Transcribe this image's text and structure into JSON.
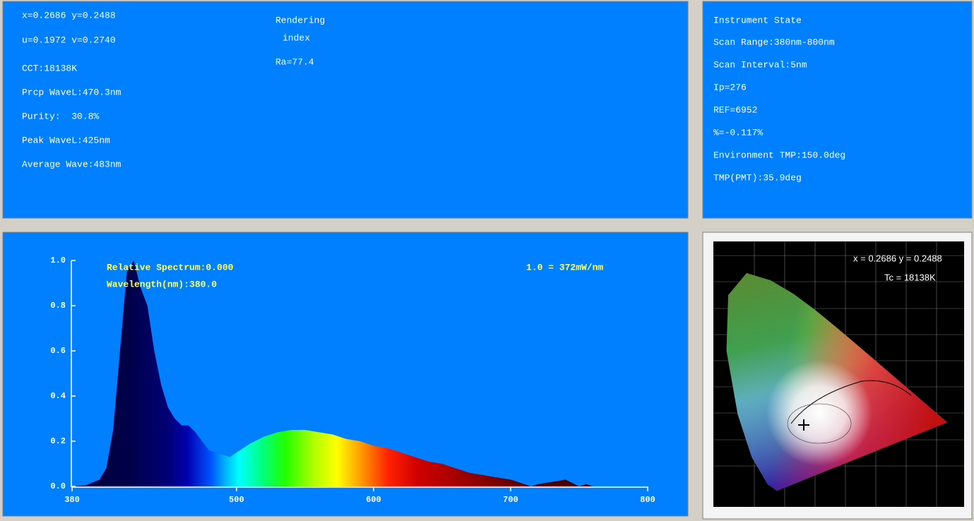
{
  "color_params": {
    "xy": "x=0.2686 y=0.2488",
    "uv": "u=0.1972 v=0.2740",
    "cct": "CCT:18138K",
    "prcp_wavel": "Prcp WaveL:470.3nm",
    "purity": "Purity:  30.8%",
    "peak_wavel": "Peak WaveL:425nm",
    "average_wave": "Average Wave:483nm"
  },
  "rendering": {
    "title": "Rendering",
    "subtitle": "index",
    "ra": "Ra=77.4"
  },
  "instrument": {
    "title": "Instrument State",
    "lines": [
      "Scan Range:380nm-800nm",
      "Scan Interval:5nm",
      "Ip=276",
      "REF=6952",
      "%=-0.117%",
      "Environment TMP:150.0deg",
      "TMP(PMT):35.9deg"
    ]
  },
  "spectrum": {
    "type": "area",
    "readout": [
      "Relative Spectrum:0.000",
      "Wavelength(nm):380.0"
    ],
    "scale_note": "1.0 = 372mW/nm",
    "x": [
      380,
      390,
      400,
      405,
      410,
      415,
      420,
      425,
      430,
      435,
      440,
      445,
      450,
      455,
      460,
      465,
      470,
      475,
      480,
      490,
      495,
      500,
      510,
      520,
      530,
      540,
      550,
      560,
      570,
      580,
      590,
      600,
      610,
      620,
      630,
      640,
      650,
      660,
      670,
      680,
      690,
      700,
      710,
      715,
      720,
      730,
      740,
      750,
      755,
      760
    ],
    "values": [
      0,
      0.005,
      0.03,
      0.08,
      0.25,
      0.6,
      0.95,
      1.0,
      0.88,
      0.8,
      0.6,
      0.45,
      0.35,
      0.3,
      0.27,
      0.27,
      0.24,
      0.2,
      0.16,
      0.14,
      0.13,
      0.15,
      0.19,
      0.22,
      0.24,
      0.25,
      0.25,
      0.24,
      0.23,
      0.21,
      0.2,
      0.18,
      0.17,
      0.15,
      0.13,
      0.11,
      0.1,
      0.08,
      0.06,
      0.05,
      0.04,
      0.03,
      0.01,
      0,
      0.01,
      0.02,
      0.03,
      0,
      0.01,
      0
    ],
    "xlim": [
      380,
      800
    ],
    "ylim": [
      0,
      1
    ],
    "xticks": [
      380,
      500,
      600,
      700,
      800
    ],
    "yticks": [
      {
        "value": 0,
        "label": "0.0"
      },
      0.2,
      0.4,
      0.6,
      0.8,
      {
        "value": 1,
        "label": "1.0"
      }
    ]
  },
  "cie": {
    "coords": "x = 0.2686 y = 0.2488",
    "tc": "Tc = 18138K"
  }
}
